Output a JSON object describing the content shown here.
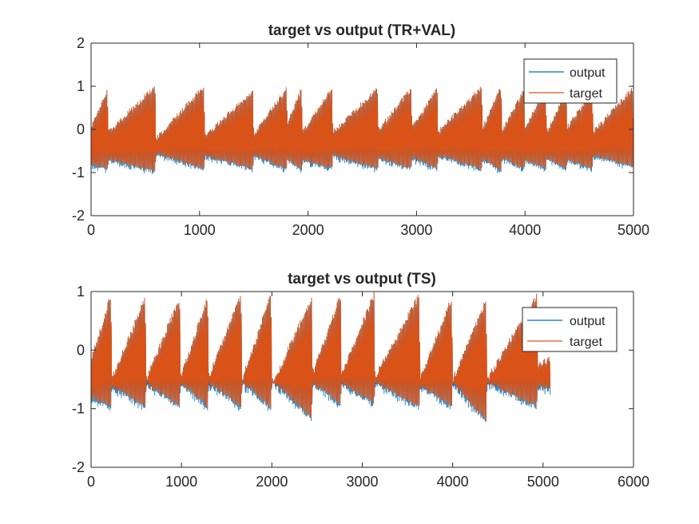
{
  "colors": {
    "output": "#0072BD",
    "target": "#D95319",
    "axis": "#262626"
  },
  "chart_data": [
    {
      "type": "line",
      "title": "target vs output (TR+VAL)",
      "xlabel": "",
      "ylabel": "",
      "xlim": [
        0,
        5000
      ],
      "ylim": [
        -2,
        2
      ],
      "xticks": [
        0,
        1000,
        2000,
        3000,
        4000,
        5000
      ],
      "yticks": [
        -2,
        -1,
        0,
        1,
        2
      ],
      "xtick_labels": [
        "0",
        "1000",
        "2000",
        "3000",
        "4000",
        "5000"
      ],
      "ytick_labels": [
        "-2",
        "-1",
        "0",
        "1",
        "2"
      ],
      "grid": false,
      "legend": {
        "position": "top-right",
        "entries": [
          "output",
          "target"
        ]
      },
      "x_end": 5000,
      "series": [
        {
          "name": "output",
          "color": "#0072BD"
        },
        {
          "name": "target",
          "color": "#D95319"
        }
      ],
      "envelope": {
        "x": [
          0,
          150,
          160,
          590,
          600,
          1040,
          1050,
          1490,
          1500,
          1800,
          1810,
          1940,
          1950,
          2220,
          2230,
          2640,
          2650,
          2950,
          2960,
          3190,
          3200,
          3600,
          3610,
          3780,
          3790,
          3990,
          4000,
          4190,
          4200,
          4380,
          4390,
          4620,
          4630,
          4990,
          5000
        ],
        "upper": [
          0.1,
          0.95,
          0.0,
          1.05,
          -0.15,
          1.05,
          -0.1,
          0.95,
          -0.05,
          1.0,
          0.2,
          1.0,
          0.0,
          1.0,
          0.0,
          1.0,
          0.05,
          1.0,
          0.1,
          1.0,
          0.0,
          1.05,
          0.1,
          1.05,
          0.05,
          0.95,
          0.1,
          0.95,
          0.0,
          0.95,
          0.1,
          0.95,
          0.0,
          1.0,
          0.1
        ],
        "lower": [
          -0.85,
          -0.95,
          -0.75,
          -1.0,
          -0.6,
          -0.95,
          -0.65,
          -0.95,
          -0.65,
          -0.95,
          -0.75,
          -0.95,
          -0.75,
          -0.95,
          -0.65,
          -0.95,
          -0.7,
          -0.95,
          -0.7,
          -0.95,
          -0.65,
          -0.95,
          -0.7,
          -1.0,
          -0.7,
          -0.95,
          -0.75,
          -0.95,
          -0.7,
          -0.95,
          -0.75,
          -0.95,
          -0.65,
          -0.9,
          -0.75
        ]
      }
    },
    {
      "type": "line",
      "title": "target vs output (TS)",
      "xlabel": "",
      "ylabel": "",
      "xlim": [
        0,
        6000
      ],
      "ylim": [
        -2,
        1
      ],
      "xticks": [
        0,
        1000,
        2000,
        3000,
        4000,
        5000,
        6000
      ],
      "yticks": [
        -2,
        -1,
        0,
        1
      ],
      "xtick_labels": [
        "0",
        "1000",
        "2000",
        "3000",
        "4000",
        "5000",
        "6000"
      ],
      "ytick_labels": [
        "-2",
        "-1",
        "0",
        "1"
      ],
      "grid": false,
      "legend": {
        "position": "top-right",
        "entries": [
          "output",
          "target"
        ]
      },
      "x_end": 5080,
      "series": [
        {
          "name": "output",
          "color": "#0072BD"
        },
        {
          "name": "target",
          "color": "#D95319"
        }
      ],
      "envelope": {
        "x": [
          0,
          220,
          230,
          600,
          610,
          980,
          990,
          1290,
          1300,
          1660,
          1670,
          1990,
          2000,
          2440,
          2450,
          2760,
          2770,
          3130,
          3140,
          3630,
          3640,
          3990,
          4000,
          4370,
          4380,
          4930,
          4940,
          5080
        ],
        "upper": [
          -0.1,
          1.0,
          -0.45,
          0.95,
          -0.45,
          0.95,
          -0.4,
          0.95,
          -0.4,
          1.0,
          -0.45,
          1.0,
          -0.55,
          0.95,
          -0.35,
          1.0,
          -0.35,
          1.0,
          -0.4,
          1.0,
          -0.45,
          0.95,
          -0.45,
          0.9,
          -0.45,
          1.0,
          -0.2,
          -0.1
        ],
        "lower": [
          -0.85,
          -1.0,
          -0.65,
          -1.0,
          -0.6,
          -1.0,
          -0.6,
          -1.0,
          -0.6,
          -1.0,
          -0.6,
          -1.0,
          -0.55,
          -1.2,
          -0.6,
          -0.95,
          -0.6,
          -0.95,
          -0.6,
          -1.0,
          -0.65,
          -1.0,
          -0.6,
          -1.25,
          -0.6,
          -1.0,
          -0.65,
          -0.7
        ]
      }
    }
  ]
}
